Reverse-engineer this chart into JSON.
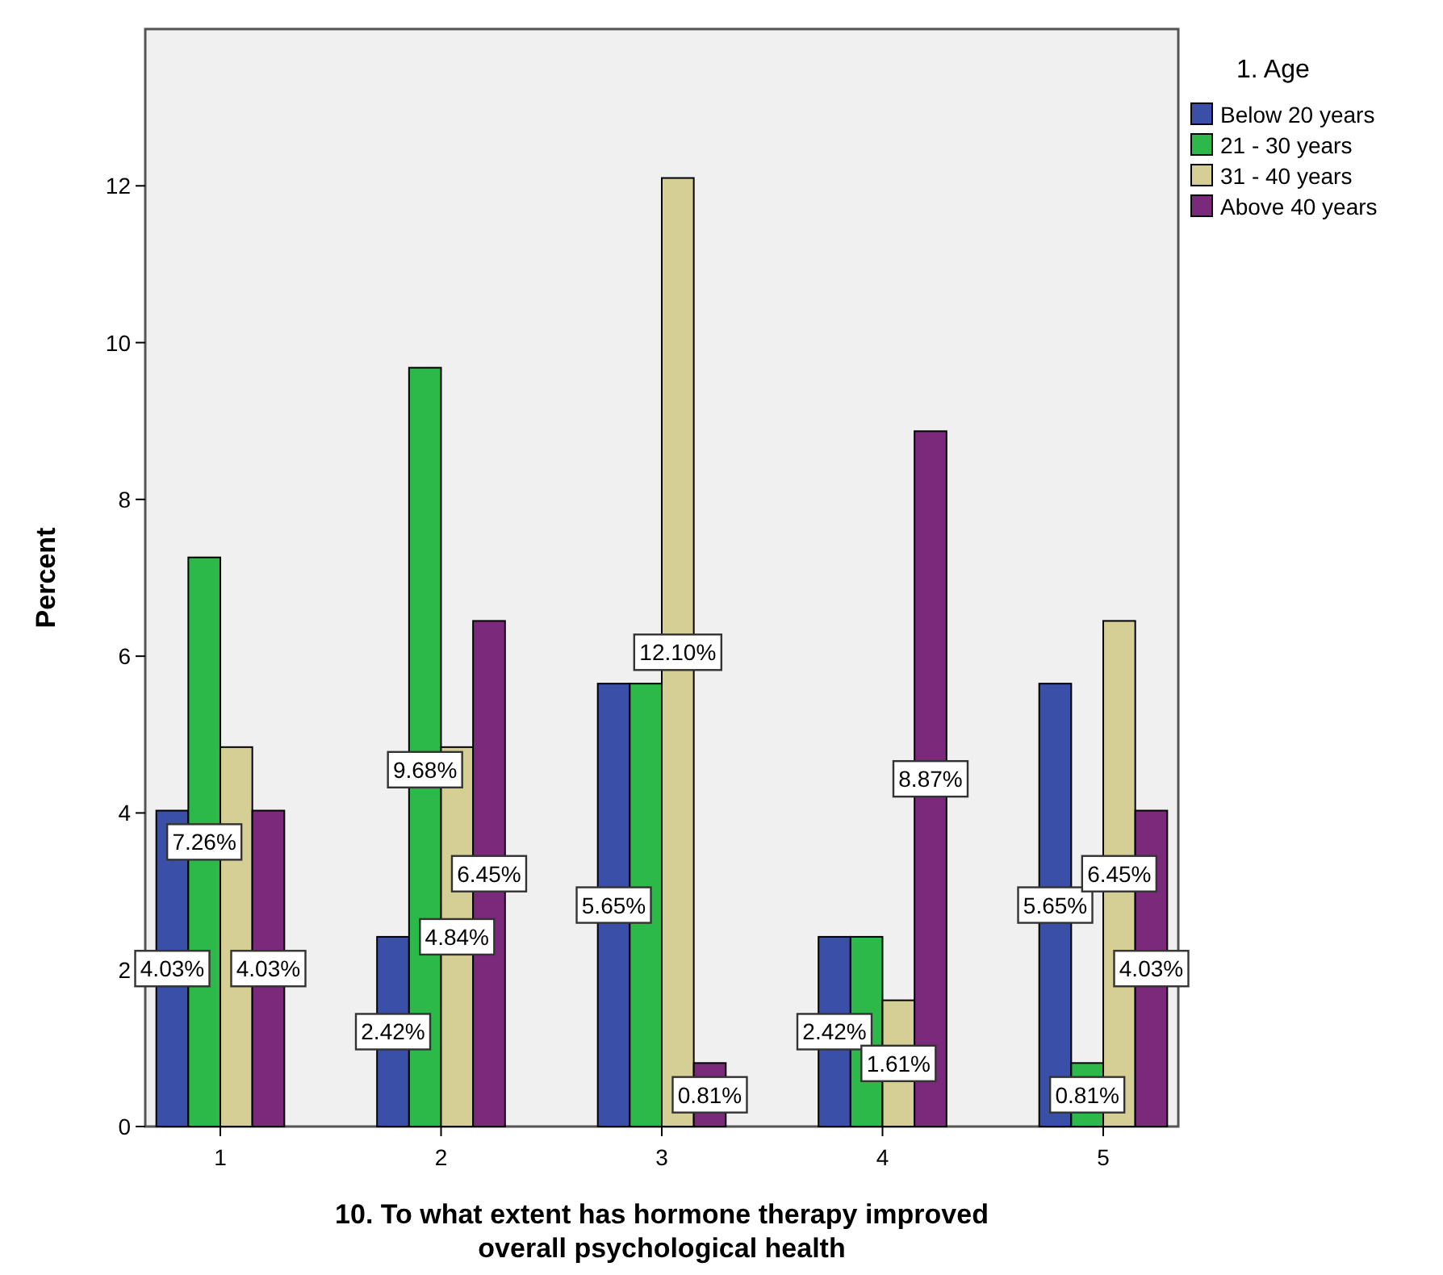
{
  "chart_data": {
    "type": "bar",
    "xlabel": "10. To what extent has hormone therapy improved overall psychological health",
    "ylabel": "Percent",
    "legend_title": "1. Age",
    "legend": "top right",
    "grid": false,
    "categories": [
      "1",
      "2",
      "3",
      "4",
      "5"
    ],
    "ylim": [
      0,
      14
    ],
    "yticks": [
      0,
      2,
      4,
      6,
      8,
      10,
      12
    ],
    "series": [
      {
        "name": "Below 20 years",
        "color": "#3a4fa8",
        "values": [
          4.03,
          2.42,
          5.65,
          2.42,
          5.65
        ],
        "value_labels": [
          "4.03%",
          "2.42%",
          "5.65%",
          "2.42%",
          "5.65%"
        ]
      },
      {
        "name": "21 - 30 years",
        "color": "#2db84a",
        "values": [
          7.26,
          9.68,
          5.65,
          2.42,
          0.81
        ],
        "value_labels": [
          "7.26%",
          "9.68%",
          null,
          null,
          "0.81%"
        ]
      },
      {
        "name": "31 - 40 years",
        "color": "#d6cf95",
        "values": [
          4.84,
          4.84,
          12.1,
          1.61,
          6.45
        ],
        "value_labels": [
          null,
          "4.84%",
          "12.10%",
          "1.61%",
          "6.45%"
        ]
      },
      {
        "name": "Above 40 years",
        "color": "#7b2a7b",
        "values": [
          4.03,
          6.45,
          0.81,
          8.87,
          4.03
        ],
        "value_labels": [
          "4.03%",
          "6.45%",
          "0.81%",
          "8.87%",
          "4.03%"
        ]
      }
    ]
  }
}
